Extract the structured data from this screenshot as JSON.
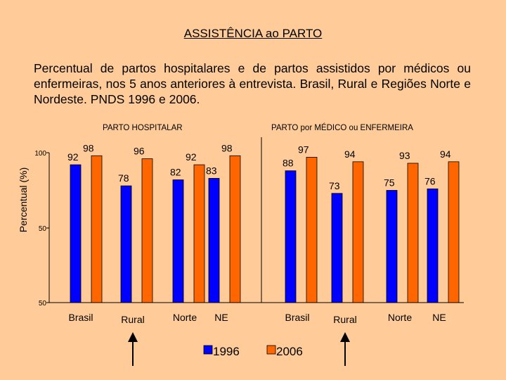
{
  "slide": {
    "title": "ASSISTÊNCIA ao PARTO",
    "subtitle": "Percentual de partos hospitalares e de partos assistidos por médicos ou enfermeiras, nos 5 anos anteriores à entrevista. Brasil, Rural e Regiões Norte e Nordeste. PNDS 1996 e 2006."
  },
  "chart_data": {
    "type": "bar",
    "ylabel": "Percentual (%)",
    "y_tick_labels": [
      "100",
      "50",
      "50"
    ],
    "panels": [
      {
        "title": "PARTO HOSPITALAR",
        "categories": [
          "Brasil",
          "Rural",
          "Norte",
          "NE"
        ],
        "series": [
          {
            "name": "1996",
            "values": [
              92,
              78,
              82,
              83
            ]
          },
          {
            "name": "2006",
            "values": [
              98,
              96,
              92,
              98
            ]
          }
        ]
      },
      {
        "title": "PARTO por MÉDICO ou ENFERMEIRA",
        "categories": [
          "Brasil",
          "Rural",
          "Norte",
          "NE"
        ],
        "series": [
          {
            "name": "1996",
            "values": [
              88,
              73,
              75,
              76
            ]
          },
          {
            "name": "2006",
            "values": [
              97,
              94,
              93,
              94
            ]
          }
        ]
      }
    ],
    "legend": [
      {
        "name": "1996",
        "color": "#0000FF"
      },
      {
        "name": "2006",
        "color": "#FF6600"
      }
    ],
    "highlight": [
      "Rural"
    ]
  },
  "colors": {
    "background": "#FFCC99",
    "series_1996": "#0000FF",
    "series_2006": "#FF6600",
    "axis": "#000000"
  }
}
